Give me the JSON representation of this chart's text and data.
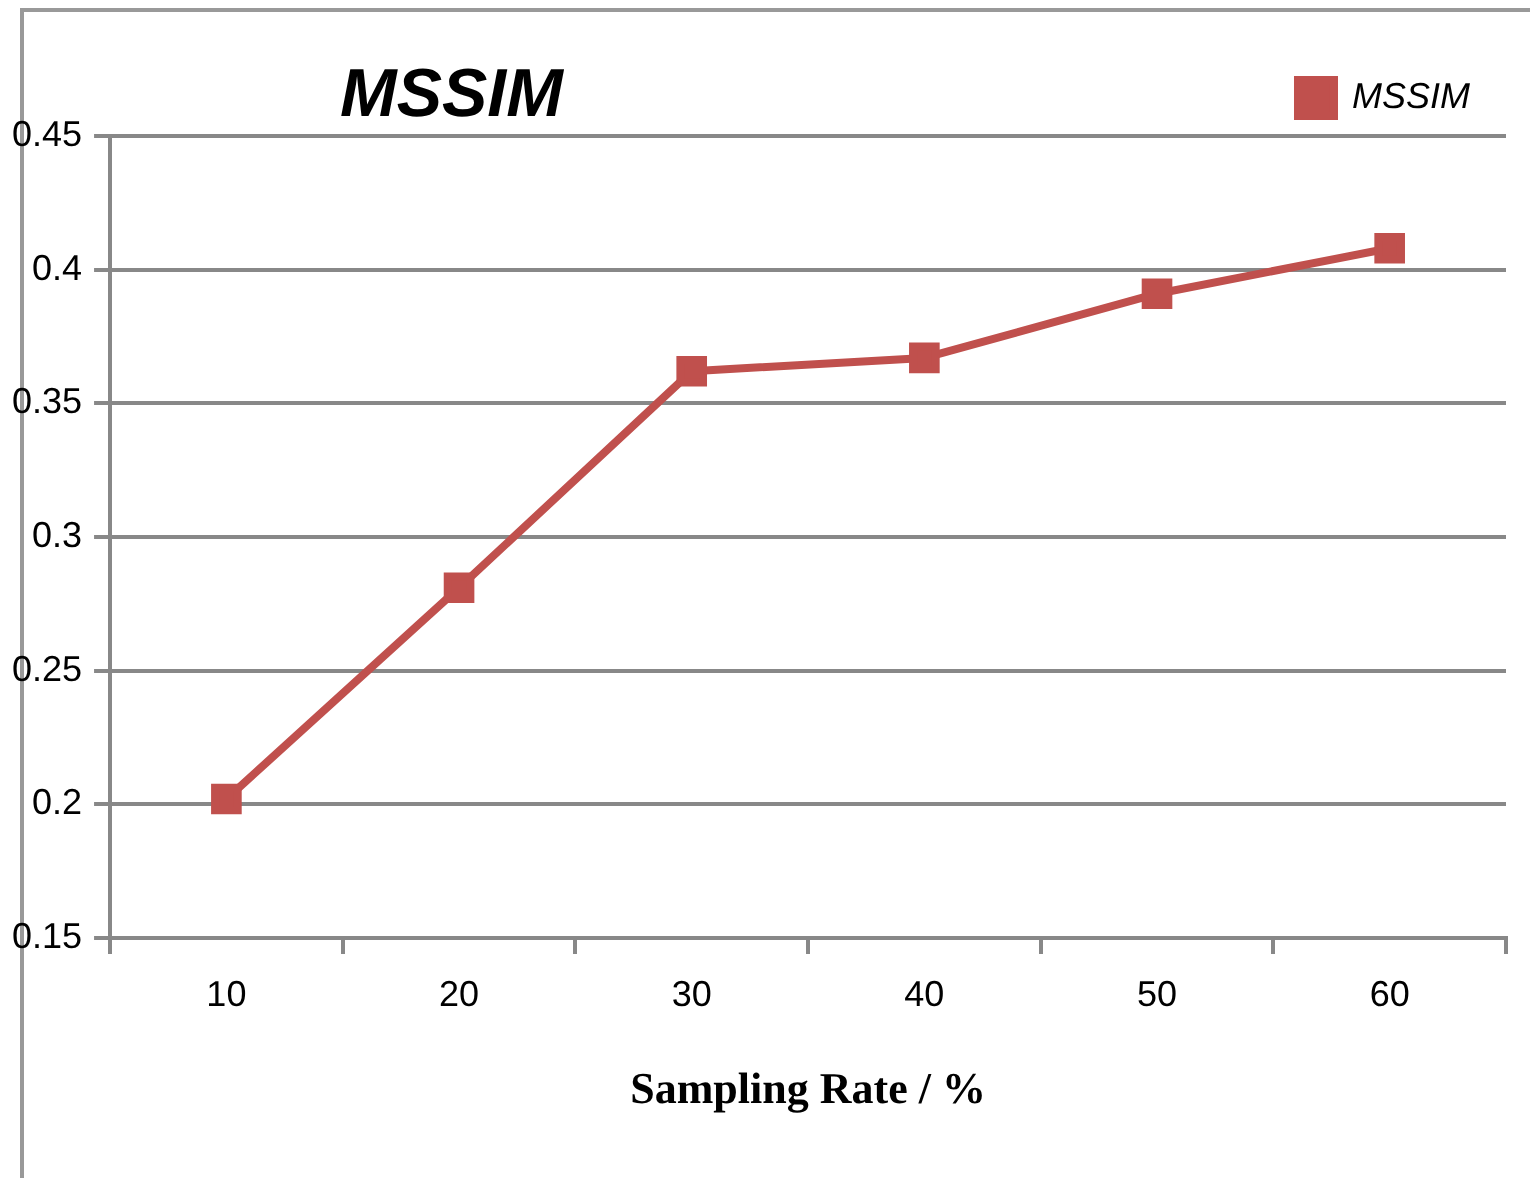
{
  "chart_data": {
    "type": "line",
    "title": "MSSIM",
    "xlabel": "Sampling Rate / %",
    "categories": [
      "10",
      "20",
      "30",
      "40",
      "50",
      "60"
    ],
    "series": [
      {
        "name": "MSSIM",
        "color": "#c0504d",
        "values": [
          0.202,
          0.281,
          0.362,
          0.367,
          0.391,
          0.408
        ]
      }
    ],
    "ylim": [
      0.15,
      0.45
    ],
    "yticks": [
      0.15,
      0.2,
      0.25,
      0.3,
      0.35,
      0.4,
      0.45
    ],
    "grid": "y",
    "legend": "top right",
    "marker": "square",
    "line_style": "solid"
  }
}
